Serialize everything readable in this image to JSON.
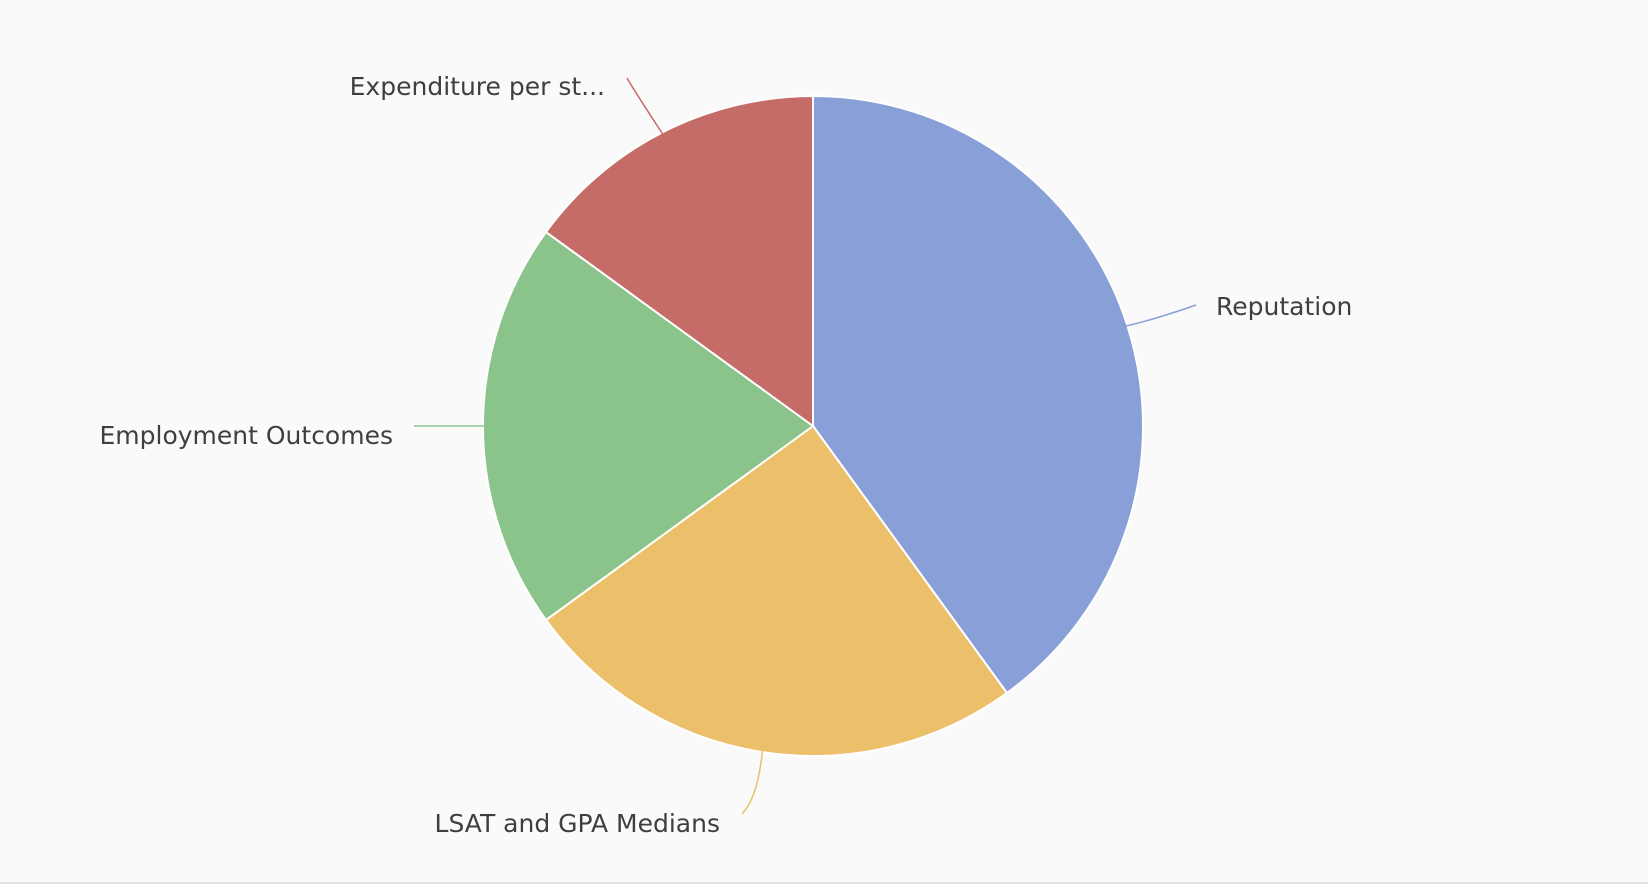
{
  "chart_data": {
    "type": "pie",
    "title": "",
    "start_angle_deg": 0,
    "direction": "clockwise",
    "slices": [
      {
        "label": "Reputation",
        "value": 40,
        "color": "#889fd7"
      },
      {
        "label": "LSAT and GPA Medians",
        "value": 25,
        "color": "#ecbf6a"
      },
      {
        "label": "Employment Outcomes",
        "value": 20,
        "color": "#8bc48b"
      },
      {
        "label": "Expenditure per st...",
        "value": 15,
        "color": "#c56c68"
      }
    ]
  }
}
